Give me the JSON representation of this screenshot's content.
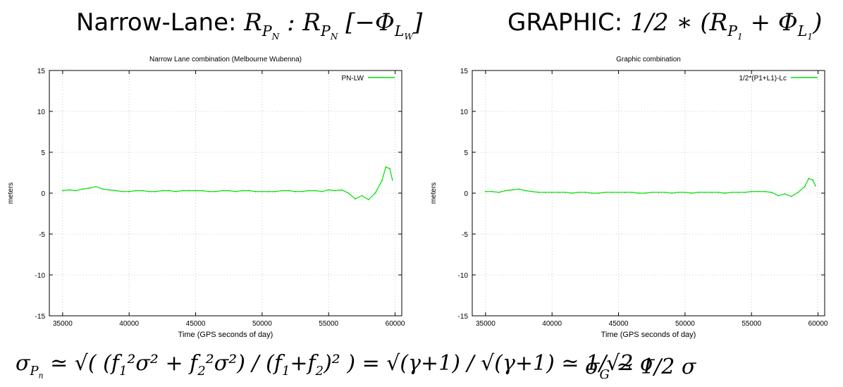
{
  "headings": {
    "left": {
      "label": "Narrow-Lane:",
      "math": "R<sub>P<sub>N</sub></sub> : R<sub>P<sub>N</sub></sub> [−Φ<sub>L<sub>W</sub></sub>]"
    },
    "right": {
      "label": "GRAPHIC:",
      "math": "1/2 ∗ (R<sub>P<sub>1</sub></sub> + Φ<sub>L<sub>1</sub></sub>)"
    }
  },
  "formulas": {
    "left": "σ<sub>P<sub>n</sub></sub> ≃ √( (f<sub>1</sub>²σ² + f<sub>2</sub>²σ²) / (f<sub>1</sub>+f<sub>2</sub>)² ) = √(γ+1) / √(γ+1) ≃ 1/√2 σ",
    "right": "σ<sub>G</sub> ≃ 1/2 σ"
  },
  "chart_data": [
    {
      "type": "line",
      "title": "Narrow Lane combination (Melbourne Wubenna)",
      "xlabel": "Time (GPS seconds of day)",
      "ylabel": "meters",
      "xlim": [
        34000,
        60500
      ],
      "ylim": [
        -15,
        15
      ],
      "xticks": [
        35000,
        40000,
        45000,
        50000,
        55000,
        60000
      ],
      "yticks": [
        -15,
        -10,
        -5,
        0,
        5,
        10,
        15
      ],
      "grid": true,
      "legend_position": "top-right",
      "series": [
        {
          "name": "PN-LW",
          "color": "#00dd00",
          "x": [
            35000,
            35500,
            36000,
            36500,
            37000,
            37500,
            38000,
            38500,
            39000,
            39500,
            40000,
            40500,
            41000,
            41500,
            42000,
            42500,
            43000,
            43500,
            44000,
            44500,
            45000,
            45500,
            46000,
            46500,
            47000,
            47500,
            48000,
            48500,
            49000,
            49500,
            50000,
            50500,
            51000,
            51500,
            52000,
            52500,
            53000,
            53500,
            54000,
            54500,
            55000,
            55500,
            56000,
            56500,
            57000,
            57500,
            58000,
            58500,
            59000,
            59300,
            59600,
            59800
          ],
          "y": [
            0.3,
            0.4,
            0.3,
            0.5,
            0.6,
            0.8,
            0.5,
            0.4,
            0.3,
            0.2,
            0.2,
            0.3,
            0.3,
            0.2,
            0.2,
            0.3,
            0.3,
            0.2,
            0.3,
            0.3,
            0.3,
            0.3,
            0.2,
            0.2,
            0.3,
            0.3,
            0.2,
            0.3,
            0.3,
            0.2,
            0.2,
            0.2,
            0.2,
            0.3,
            0.3,
            0.2,
            0.2,
            0.3,
            0.3,
            0.2,
            0.4,
            0.3,
            0.4,
            0.0,
            -0.7,
            -0.3,
            -0.8,
            0.0,
            1.5,
            3.2,
            3.0,
            1.6
          ]
        }
      ]
    },
    {
      "type": "line",
      "title": "Graphic combination",
      "xlabel": "Time (GPS seconds of day)",
      "ylabel": "meters",
      "xlim": [
        34000,
        60500
      ],
      "ylim": [
        -15,
        15
      ],
      "xticks": [
        35000,
        40000,
        45000,
        50000,
        55000,
        60000
      ],
      "yticks": [
        -15,
        -10,
        -5,
        0,
        5,
        10,
        15
      ],
      "grid": true,
      "legend_position": "top-right",
      "series": [
        {
          "name": "1/2*(P1+L1)-Lc",
          "color": "#00dd00",
          "x": [
            35000,
            35500,
            36000,
            36500,
            37000,
            37500,
            38000,
            38500,
            39000,
            39500,
            40000,
            40500,
            41000,
            41500,
            42000,
            42500,
            43000,
            43500,
            44000,
            44500,
            45000,
            45500,
            46000,
            46500,
            47000,
            47500,
            48000,
            48500,
            49000,
            49500,
            50000,
            50500,
            51000,
            51500,
            52000,
            52500,
            53000,
            53500,
            54000,
            54500,
            55000,
            55500,
            56000,
            56500,
            57000,
            57500,
            58000,
            58500,
            59000,
            59300,
            59600,
            59800
          ],
          "y": [
            0.2,
            0.2,
            0.1,
            0.3,
            0.4,
            0.5,
            0.3,
            0.2,
            0.1,
            0.1,
            0.1,
            0.1,
            0.1,
            0.0,
            0.1,
            0.1,
            0.0,
            0.0,
            0.1,
            0.1,
            0.1,
            0.1,
            0.1,
            0.0,
            0.0,
            0.1,
            0.1,
            0.1,
            0.0,
            0.1,
            0.1,
            0.0,
            0.1,
            0.1,
            0.1,
            0.1,
            0.0,
            0.1,
            0.1,
            0.1,
            0.2,
            0.2,
            0.2,
            0.1,
            -0.3,
            -0.1,
            -0.4,
            0.1,
            0.8,
            1.8,
            1.6,
            0.9
          ]
        }
      ]
    }
  ]
}
